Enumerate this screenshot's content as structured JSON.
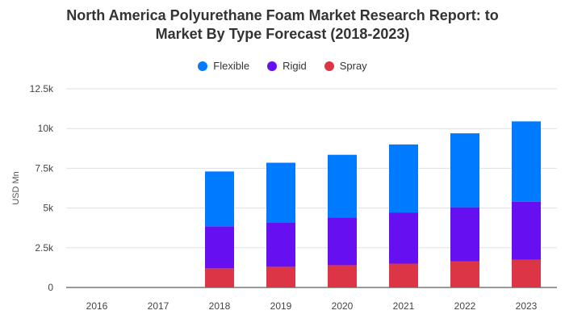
{
  "chart_data": {
    "type": "bar",
    "stacked": true,
    "title_line1": "North America Polyurethane Foam Market Research Report: to",
    "title_line2": "Market By Type Forecast (2018-2023)",
    "categories": [
      "2016",
      "2017",
      "2018",
      "2019",
      "2020",
      "2021",
      "2022",
      "2023"
    ],
    "series": [
      {
        "name": "Spray",
        "color": "#dc3545",
        "values": [
          0,
          0,
          1200,
          1300,
          1400,
          1500,
          1650,
          1750
        ]
      },
      {
        "name": "Rigid",
        "color": "#6610f2",
        "values": [
          0,
          0,
          2650,
          2800,
          3000,
          3200,
          3400,
          3650
        ]
      },
      {
        "name": "Flexible",
        "color": "#007bff",
        "values": [
          0,
          0,
          3450,
          3750,
          3950,
          4300,
          4650,
          5050
        ]
      }
    ],
    "legend_order": [
      "Flexible",
      "Rigid",
      "Spray"
    ],
    "ylabel": "USD Mn",
    "xlabel": "",
    "ylim": [
      0,
      12500
    ],
    "y_ticks": [
      0,
      2500,
      5000,
      7500,
      10000,
      12500
    ],
    "y_tick_labels": [
      "0",
      "2.5k",
      "5k",
      "7.5k",
      "10k",
      "12.5k"
    ],
    "grid": true,
    "legend_position": "top-center"
  }
}
